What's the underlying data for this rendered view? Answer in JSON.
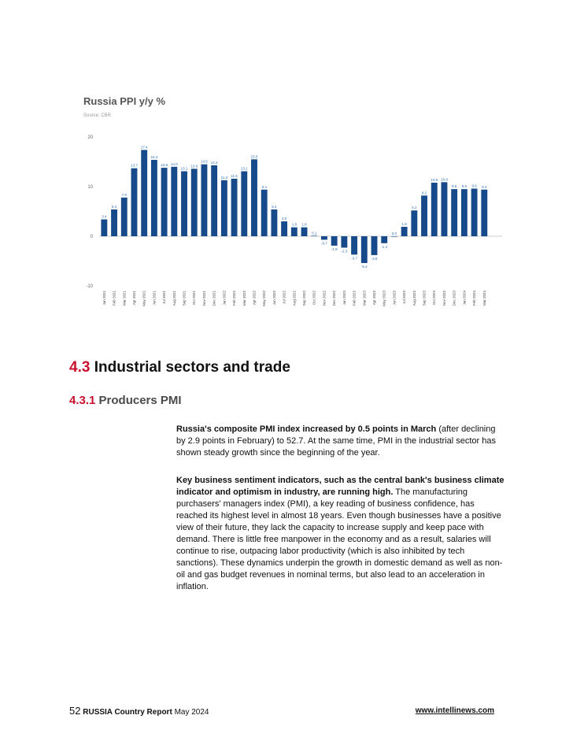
{
  "chart_data": {
    "type": "bar",
    "title": "Russia PPI y/y %",
    "source": "Source: CBR",
    "yticks": [
      20,
      10,
      0,
      -10
    ],
    "ylim": [
      -10,
      20
    ],
    "color": "#174a8b",
    "categories": [
      "Jan 2021",
      "Feb 2021",
      "Mar 2021",
      "Apr 2021",
      "May 2021",
      "Jun 2021",
      "Jul 2021",
      "Aug 2021",
      "Sep 2021",
      "Oct 2021",
      "Nov 2021",
      "Dec 2021",
      "Jan 2022",
      "Feb 2022",
      "Mar 2022",
      "Apr 2022",
      "May 2022",
      "Jun 2022",
      "Jul 2022",
      "Aug 2022",
      "Sep 2022",
      "Oct 2022",
      "Nov 2022",
      "Dec 2022",
      "Jan 2023",
      "Feb 2023",
      "Mar 2023",
      "Apr 2023",
      "May 2023",
      "Jun 2023",
      "Jul 2023",
      "Aug 2023",
      "Sep 2023",
      "Oct 2023",
      "Nov 2023",
      "Dec 2023",
      "Jan 2024",
      "Feb 2024",
      "Mar 2024"
    ],
    "values": [
      3.4,
      5.4,
      7.8,
      13.7,
      17.4,
      15.4,
      13.8,
      14.0,
      13.1,
      13.6,
      14.5,
      14.3,
      11.3,
      11.6,
      13.1,
      15.5,
      9.4,
      5.4,
      3.0,
      1.8,
      1.8,
      0.1,
      -0.7,
      -1.9,
      -2.3,
      -3.7,
      -5.4,
      -3.8,
      -1.4,
      0.0,
      1.9,
      5.2,
      8.2,
      10.8,
      10.9,
      9.5,
      9.5,
      9.6,
      9.4
    ],
    "labels": [
      "3.4",
      "5.4",
      "7.8",
      "13.7",
      "17.4",
      "15.4",
      "13.8",
      "14.0",
      "13.1",
      "13.6",
      "14.5",
      "14.3",
      "11.3",
      "11.6",
      "13.1",
      "15.5",
      "9.4",
      "5.4",
      "3.0",
      "1.8",
      "1.8",
      "0.1",
      "-0.7",
      "-1.9",
      "-2.3",
      "-3.7",
      "-5.4",
      "-3.8",
      "-1.4",
      "0.0",
      "1.9",
      "5.2",
      "8.2",
      "10.8",
      "10.9",
      "9.5",
      "9.5",
      "9.6",
      "9.4"
    ]
  },
  "section": {
    "number": "4.3",
    "title": "Industrial sectors and trade"
  },
  "subsection": {
    "number": "4.3.1",
    "title": "Producers PMI"
  },
  "paragraphs": {
    "p1_bold": "Russia's composite PMI index increased by 0.5 points in March",
    "p1_rest": " (after declining by 2.9 points in February) to 52.7. At the same time, PMI in the industrial sector has shown steady growth since the beginning of the year.",
    "p2_bold": "Key business sentiment indicators, such as the central bank's business climate indicator and optimism in industry, are running high.",
    "p2_rest": " The manufacturing purchasers' managers index (PMI), a key reading of business confidence, has reached its highest level in almost 18 years. Even though businesses have a positive view of their future, they lack the capacity to increase supply and keep pace with demand. There is little free manpower in the economy and as a result, salaries will continue to rise, outpacing labor productivity (which is also inhibited by tech sanctions). These dynamics underpin the growth in domestic demand as well as non-oil and gas budget revenues in nominal terms, but also lead to an acceleration in inflation."
  },
  "footer": {
    "page_number": "52",
    "report": "RUSSIA Country Report",
    "date": "May 2024",
    "url": "www.intellinews.com"
  }
}
